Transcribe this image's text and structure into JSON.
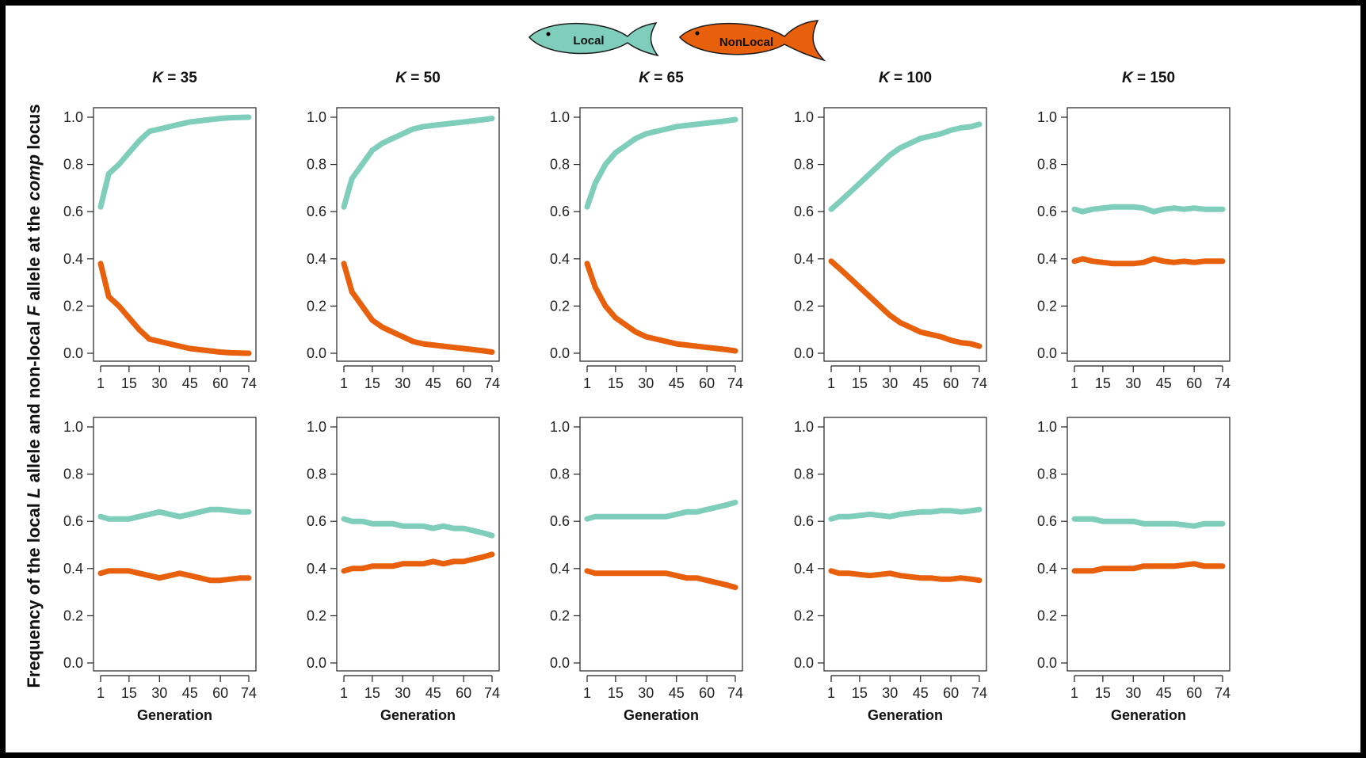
{
  "legend": {
    "local_label": "Local",
    "nonlocal_label": "NonLocal",
    "local_color": "#7FCDBB",
    "nonlocal_color": "#E8600C"
  },
  "y_axis": {
    "label_parts": [
      "Frequency of the local ",
      "L",
      " allele and non-local ",
      "F",
      " allele at the ",
      "comp",
      " locus"
    ],
    "label_styles": [
      "normal",
      "italic",
      "normal",
      "italic",
      "normal",
      "italic",
      "normal"
    ]
  },
  "chart_data": {
    "type": "line",
    "columns": [
      "35",
      "50",
      "65",
      "100",
      "150"
    ],
    "title_prefix": "K",
    "title_sep": " = ",
    "xlabel": "Generation",
    "xticks": [
      1,
      15,
      30,
      45,
      60,
      74
    ],
    "xlim": [
      1,
      74
    ],
    "yticks": [
      "0.0",
      "0.2",
      "0.4",
      "0.6",
      "0.8",
      "1.0"
    ],
    "ylim": [
      0,
      1
    ],
    "grid": false,
    "legend_placement": "top-center",
    "series_colors": [
      "#7FCDBB",
      "#E8600C"
    ],
    "panels": [
      {
        "row": 0,
        "col": 0,
        "x": [
          1,
          5,
          10,
          15,
          20,
          25,
          30,
          35,
          40,
          45,
          50,
          55,
          60,
          65,
          70,
          74
        ],
        "series": [
          {
            "values": [
              0.62,
              0.76,
              0.8,
              0.85,
              0.9,
              0.94,
              0.95,
              0.96,
              0.97,
              0.98,
              0.985,
              0.99,
              0.995,
              0.998,
              0.999,
              1.0
            ]
          },
          {
            "values": [
              0.38,
              0.24,
              0.2,
              0.15,
              0.1,
              0.06,
              0.05,
              0.04,
              0.03,
              0.02,
              0.015,
              0.01,
              0.005,
              0.002,
              0.001,
              0.0
            ]
          }
        ]
      },
      {
        "row": 0,
        "col": 1,
        "x": [
          1,
          5,
          10,
          15,
          20,
          25,
          30,
          35,
          40,
          45,
          50,
          55,
          60,
          65,
          70,
          74
        ],
        "series": [
          {
            "values": [
              0.62,
              0.74,
              0.8,
              0.86,
              0.89,
              0.91,
              0.93,
              0.95,
              0.96,
              0.965,
              0.97,
              0.975,
              0.98,
              0.985,
              0.99,
              0.995
            ]
          },
          {
            "values": [
              0.38,
              0.26,
              0.2,
              0.14,
              0.11,
              0.09,
              0.07,
              0.05,
              0.04,
              0.035,
              0.03,
              0.025,
              0.02,
              0.015,
              0.01,
              0.005
            ]
          }
        ]
      },
      {
        "row": 0,
        "col": 2,
        "x": [
          1,
          5,
          10,
          15,
          20,
          25,
          30,
          35,
          40,
          45,
          50,
          55,
          60,
          65,
          70,
          74
        ],
        "series": [
          {
            "values": [
              0.62,
              0.72,
              0.8,
              0.85,
              0.88,
              0.91,
              0.93,
              0.94,
              0.95,
              0.96,
              0.965,
              0.97,
              0.975,
              0.98,
              0.985,
              0.99
            ]
          },
          {
            "values": [
              0.38,
              0.28,
              0.2,
              0.15,
              0.12,
              0.09,
              0.07,
              0.06,
              0.05,
              0.04,
              0.035,
              0.03,
              0.025,
              0.02,
              0.015,
              0.01
            ]
          }
        ]
      },
      {
        "row": 0,
        "col": 3,
        "x": [
          1,
          5,
          10,
          15,
          20,
          25,
          30,
          35,
          40,
          45,
          50,
          55,
          60,
          65,
          70,
          74
        ],
        "series": [
          {
            "values": [
              0.61,
              0.64,
              0.68,
              0.72,
              0.76,
              0.8,
              0.84,
              0.87,
              0.89,
              0.91,
              0.92,
              0.93,
              0.945,
              0.955,
              0.96,
              0.97
            ]
          },
          {
            "values": [
              0.39,
              0.36,
              0.32,
              0.28,
              0.24,
              0.2,
              0.16,
              0.13,
              0.11,
              0.09,
              0.08,
              0.07,
              0.055,
              0.045,
              0.04,
              0.03
            ]
          }
        ]
      },
      {
        "row": 0,
        "col": 4,
        "x": [
          1,
          5,
          10,
          15,
          20,
          25,
          30,
          35,
          40,
          45,
          50,
          55,
          60,
          65,
          70,
          74
        ],
        "series": [
          {
            "values": [
              0.61,
              0.6,
              0.61,
              0.615,
              0.62,
              0.62,
              0.62,
              0.615,
              0.6,
              0.61,
              0.615,
              0.61,
              0.615,
              0.61,
              0.61,
              0.61
            ]
          },
          {
            "values": [
              0.39,
              0.4,
              0.39,
              0.385,
              0.38,
              0.38,
              0.38,
              0.385,
              0.4,
              0.39,
              0.385,
              0.39,
              0.385,
              0.39,
              0.39,
              0.39
            ]
          }
        ]
      },
      {
        "row": 1,
        "col": 0,
        "x": [
          1,
          5,
          10,
          15,
          20,
          25,
          30,
          35,
          40,
          45,
          50,
          55,
          60,
          65,
          70,
          74
        ],
        "series": [
          {
            "values": [
              0.62,
              0.61,
              0.61,
              0.61,
              0.62,
              0.63,
              0.64,
              0.63,
              0.62,
              0.63,
              0.64,
              0.65,
              0.65,
              0.645,
              0.64,
              0.64
            ]
          },
          {
            "values": [
              0.38,
              0.39,
              0.39,
              0.39,
              0.38,
              0.37,
              0.36,
              0.37,
              0.38,
              0.37,
              0.36,
              0.35,
              0.35,
              0.355,
              0.36,
              0.36
            ]
          }
        ]
      },
      {
        "row": 1,
        "col": 1,
        "x": [
          1,
          5,
          10,
          15,
          20,
          25,
          30,
          35,
          40,
          45,
          50,
          55,
          60,
          65,
          70,
          74
        ],
        "series": [
          {
            "values": [
              0.61,
              0.6,
              0.6,
              0.59,
              0.59,
              0.59,
              0.58,
              0.58,
              0.58,
              0.57,
              0.58,
              0.57,
              0.57,
              0.56,
              0.55,
              0.54
            ]
          },
          {
            "values": [
              0.39,
              0.4,
              0.4,
              0.41,
              0.41,
              0.41,
              0.42,
              0.42,
              0.42,
              0.43,
              0.42,
              0.43,
              0.43,
              0.44,
              0.45,
              0.46
            ]
          }
        ]
      },
      {
        "row": 1,
        "col": 2,
        "x": [
          1,
          5,
          10,
          15,
          20,
          25,
          30,
          35,
          40,
          45,
          50,
          55,
          60,
          65,
          70,
          74
        ],
        "series": [
          {
            "values": [
              0.61,
              0.62,
              0.62,
              0.62,
              0.62,
              0.62,
              0.62,
              0.62,
              0.62,
              0.63,
              0.64,
              0.64,
              0.65,
              0.66,
              0.67,
              0.68
            ]
          },
          {
            "values": [
              0.39,
              0.38,
              0.38,
              0.38,
              0.38,
              0.38,
              0.38,
              0.38,
              0.38,
              0.37,
              0.36,
              0.36,
              0.35,
              0.34,
              0.33,
              0.32
            ]
          }
        ]
      },
      {
        "row": 1,
        "col": 3,
        "x": [
          1,
          5,
          10,
          15,
          20,
          25,
          30,
          35,
          40,
          45,
          50,
          55,
          60,
          65,
          70,
          74
        ],
        "series": [
          {
            "values": [
              0.61,
              0.62,
              0.62,
              0.625,
              0.63,
              0.625,
              0.62,
              0.63,
              0.635,
              0.64,
              0.64,
              0.645,
              0.645,
              0.64,
              0.645,
              0.65
            ]
          },
          {
            "values": [
              0.39,
              0.38,
              0.38,
              0.375,
              0.37,
              0.375,
              0.38,
              0.37,
              0.365,
              0.36,
              0.36,
              0.355,
              0.355,
              0.36,
              0.355,
              0.35
            ]
          }
        ]
      },
      {
        "row": 1,
        "col": 4,
        "x": [
          1,
          5,
          10,
          15,
          20,
          25,
          30,
          35,
          40,
          45,
          50,
          55,
          60,
          65,
          70,
          74
        ],
        "series": [
          {
            "values": [
              0.61,
              0.61,
              0.61,
              0.6,
              0.6,
              0.6,
              0.6,
              0.59,
              0.59,
              0.59,
              0.59,
              0.585,
              0.58,
              0.59,
              0.59,
              0.59
            ]
          },
          {
            "values": [
              0.39,
              0.39,
              0.39,
              0.4,
              0.4,
              0.4,
              0.4,
              0.41,
              0.41,
              0.41,
              0.41,
              0.415,
              0.42,
              0.41,
              0.41,
              0.41
            ]
          }
        ]
      }
    ]
  }
}
